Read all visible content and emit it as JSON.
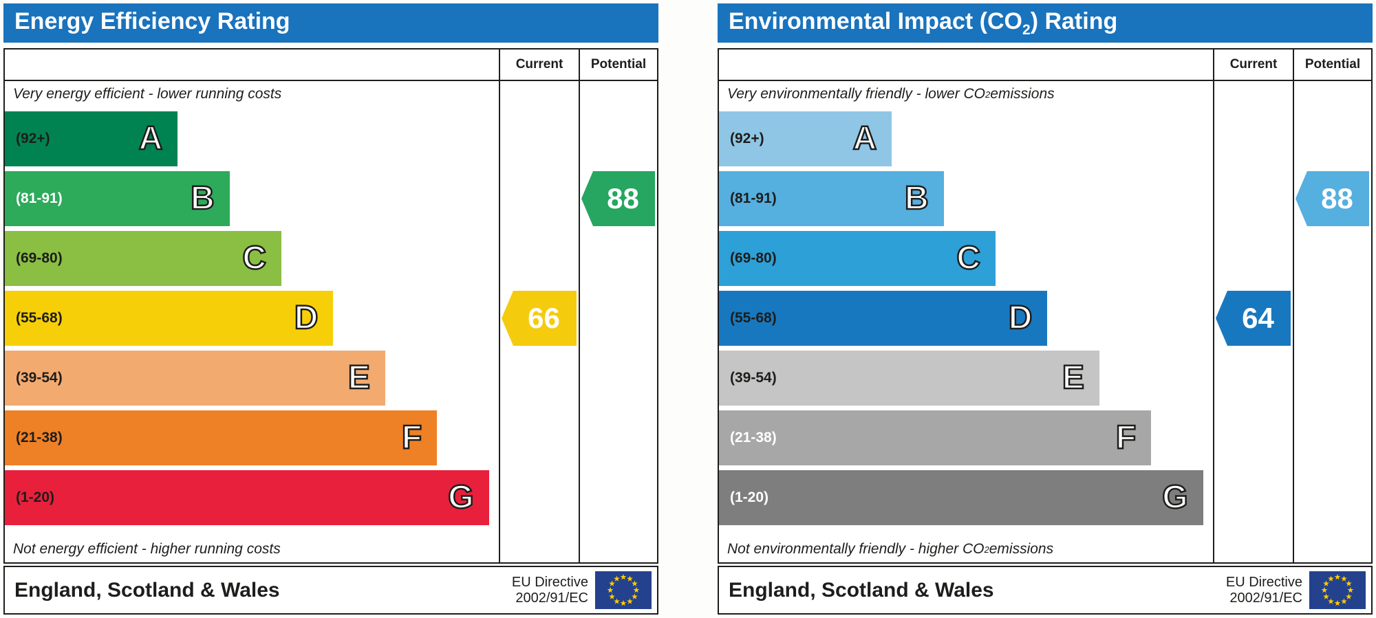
{
  "panels": [
    {
      "title": {
        "pre": "Energy Efficiency Rating",
        "sub": "",
        "post": ""
      },
      "header": {
        "current": "Current",
        "potential": "Potential"
      },
      "caption_top": {
        "pre": "Very energy efficient - lower running costs",
        "sub": "",
        "post": ""
      },
      "caption_bottom": {
        "pre": "Not energy efficient - higher running costs",
        "sub": "",
        "post": ""
      },
      "bands": [
        {
          "range": "(92+)",
          "letter": "A",
          "color": "#008351",
          "width_pct": 35,
          "label_color": "#1d1d1b"
        },
        {
          "range": "(81-91)",
          "letter": "B",
          "color": "#2eaa5b",
          "width_pct": 45.5,
          "label_color": "#ffffff"
        },
        {
          "range": "(69-80)",
          "letter": "C",
          "color": "#8abf43",
          "width_pct": 56,
          "label_color": "#1d1d1b"
        },
        {
          "range": "(55-68)",
          "letter": "D",
          "color": "#f7cf08",
          "width_pct": 66.5,
          "label_color": "#1d1d1b"
        },
        {
          "range": "(39-54)",
          "letter": "E",
          "color": "#f3aa6f",
          "width_pct": 77,
          "label_color": "#1d1d1b"
        },
        {
          "range": "(21-38)",
          "letter": "F",
          "color": "#ee8026",
          "width_pct": 87.5,
          "label_color": "#1d1d1b"
        },
        {
          "range": "(1-20)",
          "letter": "G",
          "color": "#e8203c",
          "width_pct": 98,
          "label_color": "#1d1d1b"
        }
      ],
      "current": {
        "value": "66",
        "band": "D",
        "color": "#f5cb0e"
      },
      "potential": {
        "value": "88",
        "band": "B",
        "color": "#26a660"
      },
      "footer": {
        "region": "England, Scotland & Wales",
        "directive_line1": "EU Directive",
        "directive_line2": "2002/91/EC"
      }
    },
    {
      "title": {
        "pre": "Environmental Impact (CO",
        "sub": "2",
        "post": ") Rating"
      },
      "header": {
        "current": "Current",
        "potential": "Potential"
      },
      "caption_top": {
        "pre": "Very environmentally friendly - lower CO",
        "sub": "2",
        "post": " emissions"
      },
      "caption_bottom": {
        "pre": "Not environmentally friendly - higher CO",
        "sub": "2",
        "post": " emissions"
      },
      "bands": [
        {
          "range": "(92+)",
          "letter": "A",
          "color": "#8fc6e6",
          "width_pct": 35,
          "label_color": "#1d1d1b"
        },
        {
          "range": "(81-91)",
          "letter": "B",
          "color": "#55afdf",
          "width_pct": 45.5,
          "label_color": "#1d1d1b"
        },
        {
          "range": "(69-80)",
          "letter": "C",
          "color": "#2da0d8",
          "width_pct": 56,
          "label_color": "#1d1d1b"
        },
        {
          "range": "(55-68)",
          "letter": "D",
          "color": "#1878bf",
          "width_pct": 66.5,
          "label_color": "#1d1d1b"
        },
        {
          "range": "(39-54)",
          "letter": "E",
          "color": "#c5c5c5",
          "width_pct": 77,
          "label_color": "#1d1d1b"
        },
        {
          "range": "(21-38)",
          "letter": "F",
          "color": "#a7a7a7",
          "width_pct": 87.5,
          "label_color": "#ffffff"
        },
        {
          "range": "(1-20)",
          "letter": "G",
          "color": "#7e7e7e",
          "width_pct": 98,
          "label_color": "#ffffff"
        }
      ],
      "current": {
        "value": "64",
        "band": "D",
        "color": "#1878bf"
      },
      "potential": {
        "value": "88",
        "band": "B",
        "color": "#55afdf"
      },
      "footer": {
        "region": "England, Scotland & Wales",
        "directive_line1": "EU Directive",
        "directive_line2": "2002/91/EC"
      }
    }
  ],
  "chart_data": [
    {
      "type": "bar",
      "title": "Energy Efficiency Rating",
      "categories": [
        "A",
        "B",
        "C",
        "D",
        "E",
        "F",
        "G"
      ],
      "band_ranges": [
        "92+",
        "81-91",
        "69-80",
        "55-68",
        "39-54",
        "21-38",
        "1-20"
      ],
      "band_colors": [
        "#008351",
        "#2eaa5b",
        "#8abf43",
        "#f7cf08",
        "#f3aa6f",
        "#ee8026",
        "#e8203c"
      ],
      "bar_width_pct": [
        35,
        45.5,
        56,
        66.5,
        77,
        87.5,
        98
      ],
      "columns": [
        "Current",
        "Potential"
      ],
      "current_value": 66,
      "current_band": "D",
      "potential_value": 88,
      "potential_band": "B",
      "top_note": "Very energy efficient - lower running costs",
      "bottom_note": "Not energy efficient - higher running costs",
      "region": "England, Scotland & Wales",
      "directive": "EU Directive 2002/91/EC"
    },
    {
      "type": "bar",
      "title": "Environmental Impact (CO2) Rating",
      "categories": [
        "A",
        "B",
        "C",
        "D",
        "E",
        "F",
        "G"
      ],
      "band_ranges": [
        "92+",
        "81-91",
        "69-80",
        "55-68",
        "39-54",
        "21-38",
        "1-20"
      ],
      "band_colors": [
        "#8fc6e6",
        "#55afdf",
        "#2da0d8",
        "#1878bf",
        "#c5c5c5",
        "#a7a7a7",
        "#7e7e7e"
      ],
      "bar_width_pct": [
        35,
        45.5,
        56,
        66.5,
        77,
        87.5,
        98
      ],
      "columns": [
        "Current",
        "Potential"
      ],
      "current_value": 64,
      "current_band": "D",
      "potential_value": 88,
      "potential_band": "B",
      "top_note": "Very environmentally friendly - lower CO2 emissions",
      "bottom_note": "Not environmentally friendly - higher CO2 emissions",
      "region": "England, Scotland & Wales",
      "directive": "EU Directive 2002/91/EC"
    }
  ]
}
